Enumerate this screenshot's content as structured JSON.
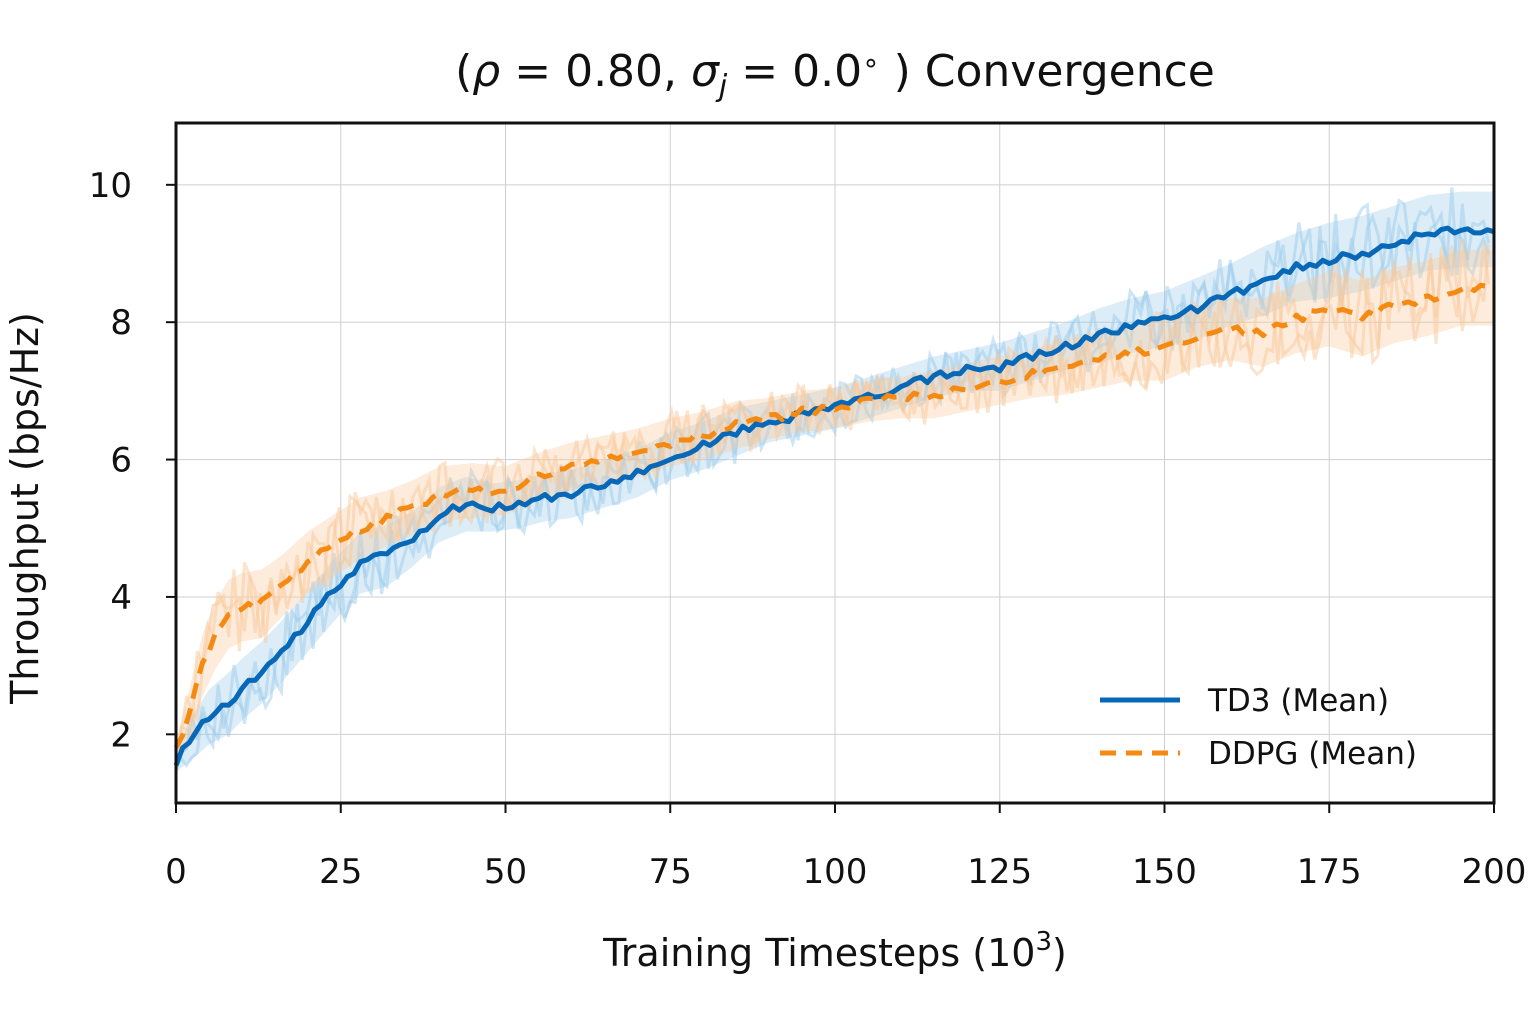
{
  "chart_data": {
    "type": "line",
    "title_parts": {
      "open": "(",
      "rho": "ρ",
      "eq1": " = 0.80, ",
      "sigma": "σ",
      "sub": "j",
      "eq2": " = 0.0",
      "deg": "∘",
      "close": " ) Convergence"
    },
    "xlabel_parts": {
      "text": "Training Timesteps (10",
      "sup": "3",
      "close": ")"
    },
    "ylabel": "Throughput (bps/Hz)",
    "xlim": [
      0,
      200
    ],
    "ylim": [
      1.0,
      10.9
    ],
    "xticks": [
      0,
      25,
      50,
      75,
      100,
      125,
      150,
      175,
      200
    ],
    "yticks": [
      2,
      4,
      6,
      8,
      10
    ],
    "grid": true,
    "legend_position": "lower-right",
    "series": [
      {
        "name": "TD3 (Mean)",
        "color": "#0868b8",
        "dash": "solid",
        "band_color": "#9ccbeb",
        "x": [
          0,
          2,
          5,
          8,
          10,
          13,
          16,
          20,
          24,
          28,
          32,
          36,
          40,
          44,
          48,
          52,
          56,
          60,
          65,
          70,
          75,
          80,
          85,
          90,
          95,
          100,
          105,
          110,
          115,
          120,
          125,
          130,
          135,
          140,
          145,
          150,
          155,
          160,
          165,
          170,
          175,
          180,
          185,
          190,
          195,
          200
        ],
        "values": [
          1.6,
          1.9,
          2.25,
          2.45,
          2.65,
          2.9,
          3.2,
          3.65,
          4.1,
          4.5,
          4.6,
          4.85,
          5.2,
          5.35,
          5.3,
          5.35,
          5.45,
          5.5,
          5.65,
          5.8,
          6.05,
          6.2,
          6.4,
          6.55,
          6.65,
          6.75,
          6.9,
          7.05,
          7.2,
          7.3,
          7.35,
          7.5,
          7.65,
          7.8,
          7.95,
          8.05,
          8.2,
          8.4,
          8.6,
          8.8,
          8.9,
          9.0,
          9.15,
          9.3,
          9.35,
          9.35
        ],
        "band_halfwidth": [
          0.15,
          0.3,
          0.4,
          0.45,
          0.45,
          0.45,
          0.45,
          0.45,
          0.45,
          0.45,
          0.45,
          0.4,
          0.4,
          0.4,
          0.35,
          0.35,
          0.35,
          0.35,
          0.35,
          0.35,
          0.35,
          0.35,
          0.35,
          0.3,
          0.3,
          0.3,
          0.3,
          0.3,
          0.3,
          0.3,
          0.35,
          0.35,
          0.35,
          0.4,
          0.4,
          0.4,
          0.45,
          0.45,
          0.5,
          0.5,
          0.55,
          0.55,
          0.55,
          0.55,
          0.55,
          0.55
        ]
      },
      {
        "name": "DDPG (Mean)",
        "color": "#f58a12",
        "dash": "dashed",
        "band_color": "#f9c89a",
        "x": [
          0,
          2,
          4,
          6,
          8,
          10,
          13,
          16,
          20,
          24,
          28,
          32,
          36,
          40,
          45,
          50,
          55,
          60,
          65,
          70,
          75,
          80,
          85,
          90,
          95,
          100,
          105,
          110,
          115,
          120,
          125,
          130,
          135,
          140,
          145,
          150,
          155,
          160,
          165,
          170,
          175,
          180,
          185,
          190,
          195,
          200
        ],
        "values": [
          1.75,
          2.3,
          3.0,
          3.45,
          3.75,
          3.85,
          3.9,
          4.15,
          4.5,
          4.75,
          5.0,
          5.15,
          5.3,
          5.5,
          5.55,
          5.55,
          5.75,
          5.9,
          6.0,
          6.1,
          6.25,
          6.35,
          6.5,
          6.6,
          6.7,
          6.75,
          6.85,
          6.9,
          6.95,
          7.05,
          7.15,
          7.25,
          7.35,
          7.45,
          7.55,
          7.6,
          7.8,
          7.9,
          7.85,
          8.05,
          8.2,
          8.05,
          8.25,
          8.35,
          8.5,
          8.5
        ],
        "band_halfwidth": [
          0.15,
          0.35,
          0.45,
          0.5,
          0.5,
          0.5,
          0.5,
          0.45,
          0.45,
          0.45,
          0.45,
          0.4,
          0.4,
          0.4,
          0.4,
          0.35,
          0.35,
          0.35,
          0.35,
          0.35,
          0.35,
          0.35,
          0.35,
          0.3,
          0.3,
          0.3,
          0.3,
          0.3,
          0.35,
          0.35,
          0.35,
          0.35,
          0.4,
          0.4,
          0.4,
          0.45,
          0.45,
          0.45,
          0.5,
          0.5,
          0.55,
          0.55,
          0.55,
          0.55,
          0.55,
          0.55
        ]
      }
    ]
  }
}
